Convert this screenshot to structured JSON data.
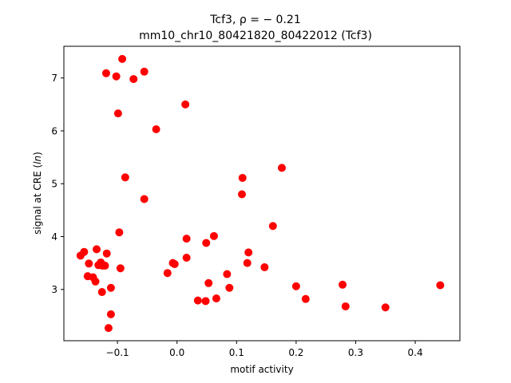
{
  "chart_data": {
    "type": "scatter",
    "title_line1_text": "Tcf3, ",
    "title_line1_rho": "ρ = − 0.21",
    "title_line2": "mm10_chr10_80421820_80422012 (Tcf3)",
    "xlabel": "motif activity",
    "ylabel_prefix": "signal at CRE (",
    "ylabel_italic": "ln",
    "ylabel_suffix": ")",
    "xlim": [
      -0.19,
      0.475
    ],
    "ylim": [
      2.03,
      7.6
    ],
    "xticks": [
      -0.1,
      0.0,
      0.1,
      0.2,
      0.3,
      0.4
    ],
    "xtick_labels": [
      "−0.1",
      "0.0",
      "0.1",
      "0.2",
      "0.3",
      "0.4"
    ],
    "yticks": [
      3,
      4,
      5,
      6,
      7
    ],
    "ytick_labels": [
      "3",
      "4",
      "5",
      "6",
      "7"
    ],
    "grid": false,
    "marker_color": "#ff0000",
    "points": [
      {
        "x": -0.092,
        "y": 7.36
      },
      {
        "x": -0.055,
        "y": 7.12
      },
      {
        "x": -0.119,
        "y": 7.09
      },
      {
        "x": -0.102,
        "y": 7.03
      },
      {
        "x": -0.073,
        "y": 6.98
      },
      {
        "x": 0.014,
        "y": 6.5
      },
      {
        "x": -0.099,
        "y": 6.33
      },
      {
        "x": -0.035,
        "y": 6.03
      },
      {
        "x": 0.176,
        "y": 5.3
      },
      {
        "x": -0.087,
        "y": 5.12
      },
      {
        "x": 0.11,
        "y": 5.11
      },
      {
        "x": 0.109,
        "y": 4.8
      },
      {
        "x": -0.055,
        "y": 4.71
      },
      {
        "x": 0.161,
        "y": 4.2
      },
      {
        "x": -0.097,
        "y": 4.08
      },
      {
        "x": 0.062,
        "y": 4.01
      },
      {
        "x": 0.016,
        "y": 3.96
      },
      {
        "x": 0.049,
        "y": 3.88
      },
      {
        "x": -0.135,
        "y": 3.76
      },
      {
        "x": -0.156,
        "y": 3.71
      },
      {
        "x": 0.12,
        "y": 3.7
      },
      {
        "x": -0.118,
        "y": 3.68
      },
      {
        "x": -0.162,
        "y": 3.64
      },
      {
        "x": 0.016,
        "y": 3.6
      },
      {
        "x": -0.128,
        "y": 3.51
      },
      {
        "x": -0.007,
        "y": 3.5
      },
      {
        "x": -0.004,
        "y": 3.48
      },
      {
        "x": -0.148,
        "y": 3.49
      },
      {
        "x": 0.118,
        "y": 3.5
      },
      {
        "x": -0.132,
        "y": 3.46
      },
      {
        "x": -0.125,
        "y": 3.45
      },
      {
        "x": -0.121,
        "y": 3.45
      },
      {
        "x": 0.147,
        "y": 3.42
      },
      {
        "x": -0.095,
        "y": 3.4
      },
      {
        "x": -0.016,
        "y": 3.31
      },
      {
        "x": 0.084,
        "y": 3.29
      },
      {
        "x": -0.15,
        "y": 3.25
      },
      {
        "x": -0.141,
        "y": 3.23
      },
      {
        "x": -0.137,
        "y": 3.15
      },
      {
        "x": 0.053,
        "y": 3.12
      },
      {
        "x": 0.2,
        "y": 3.06
      },
      {
        "x": 0.278,
        "y": 3.09
      },
      {
        "x": 0.442,
        "y": 3.08
      },
      {
        "x": 0.088,
        "y": 3.03
      },
      {
        "x": -0.111,
        "y": 3.03
      },
      {
        "x": -0.126,
        "y": 2.95
      },
      {
        "x": 0.216,
        "y": 2.82
      },
      {
        "x": 0.066,
        "y": 2.83
      },
      {
        "x": 0.035,
        "y": 2.79
      },
      {
        "x": 0.048,
        "y": 2.78
      },
      {
        "x": 0.283,
        "y": 2.68
      },
      {
        "x": 0.35,
        "y": 2.66
      },
      {
        "x": -0.111,
        "y": 2.53
      },
      {
        "x": -0.115,
        "y": 2.27
      }
    ]
  }
}
